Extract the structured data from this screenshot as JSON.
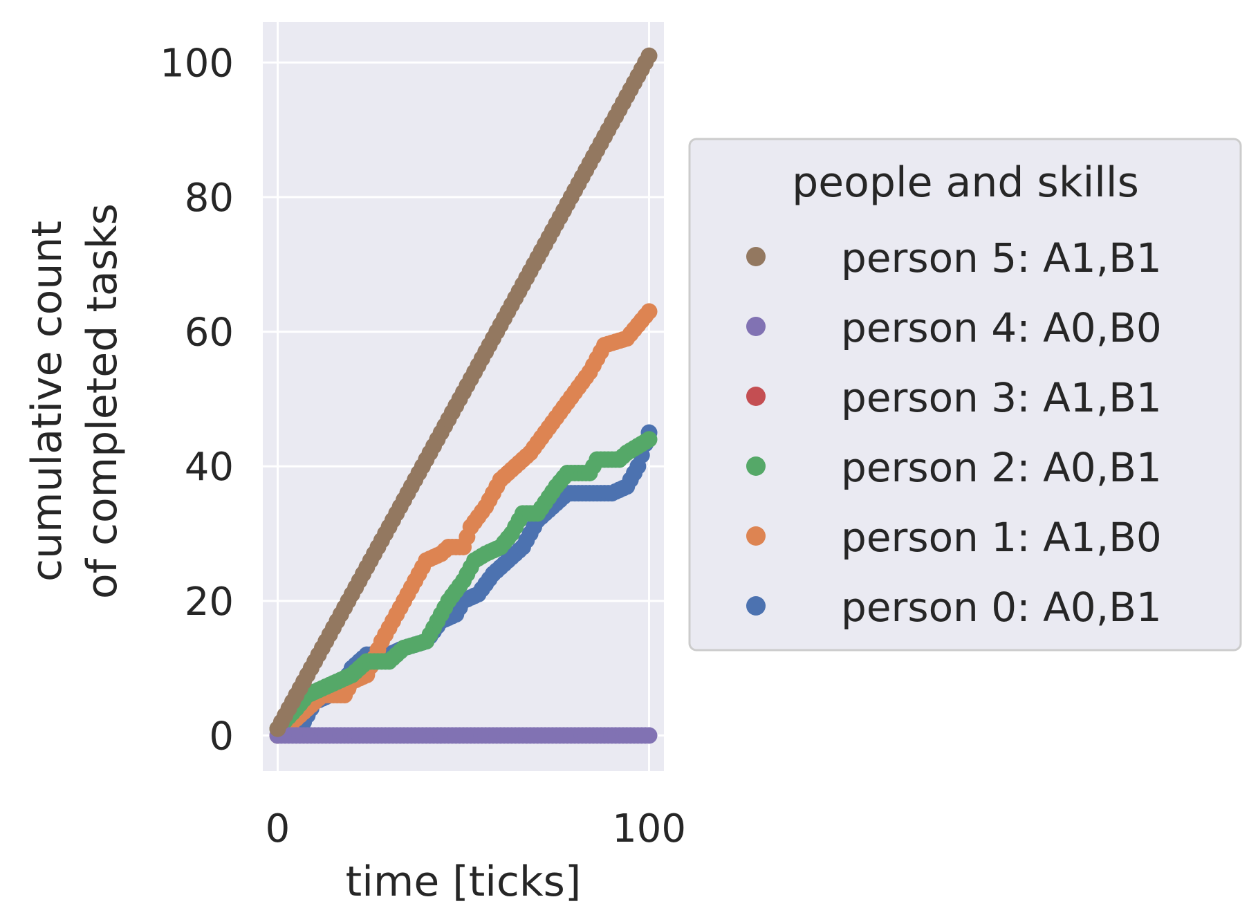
{
  "chart_data": {
    "type": "scatter",
    "xlabel": "time [ticks]",
    "ylabel_lines": [
      "cumulative count",
      "of completed tasks"
    ],
    "xlim": [
      -4,
      104
    ],
    "ylim": [
      -5.3,
      106
    ],
    "xticks": [
      0,
      100
    ],
    "yticks": [
      0,
      20,
      40,
      60,
      80,
      100
    ],
    "grid": true,
    "legend_title": "people and skills",
    "legend_position": "outside-right",
    "colors": {
      "background": "#eaeaf2",
      "grid": "#ffffff",
      "legend_face": "#eaeaf2",
      "legend_edge": "#cccccc"
    },
    "series": [
      {
        "name": "person 5: A1,B1",
        "color": "#937860",
        "points": [
          [
            0,
            1
          ],
          [
            100,
            101
          ]
        ]
      },
      {
        "name": "person 4: A0,B0",
        "color": "#8172b3",
        "points": [
          [
            0,
            0
          ],
          [
            100,
            0
          ]
        ]
      },
      {
        "name": "person 3: A1,B1",
        "color": "#c44e52",
        "points": []
      },
      {
        "name": "person 2: A0,B1",
        "color": "#55a868",
        "points": [
          [
            0,
            1
          ],
          [
            5,
            4
          ],
          [
            8,
            6
          ],
          [
            12,
            7
          ],
          [
            16,
            8
          ],
          [
            20,
            9
          ],
          [
            24,
            11
          ],
          [
            30,
            11
          ],
          [
            34,
            13
          ],
          [
            40,
            14
          ],
          [
            44,
            18
          ],
          [
            46,
            20
          ],
          [
            50,
            23
          ],
          [
            53,
            26
          ],
          [
            56,
            27
          ],
          [
            60,
            28
          ],
          [
            63,
            30
          ],
          [
            66,
            33
          ],
          [
            70,
            33
          ],
          [
            75,
            37
          ],
          [
            78,
            39
          ],
          [
            84,
            39
          ],
          [
            86,
            41
          ],
          [
            92,
            41
          ],
          [
            94,
            42
          ],
          [
            97,
            43
          ],
          [
            100,
            44
          ]
        ]
      },
      {
        "name": "person 1: A1,B0",
        "color": "#dd8452",
        "points": [
          [
            0,
            0
          ],
          [
            4,
            2
          ],
          [
            8,
            4
          ],
          [
            10,
            5
          ],
          [
            12,
            6
          ],
          [
            18,
            6
          ],
          [
            20,
            8
          ],
          [
            24,
            9
          ],
          [
            28,
            14
          ],
          [
            32,
            18
          ],
          [
            36,
            22
          ],
          [
            40,
            26
          ],
          [
            44,
            27
          ],
          [
            46,
            28
          ],
          [
            50,
            28
          ],
          [
            52,
            31
          ],
          [
            56,
            34
          ],
          [
            60,
            38
          ],
          [
            62,
            39
          ],
          [
            66,
            41
          ],
          [
            68,
            42
          ],
          [
            72,
            45
          ],
          [
            76,
            48
          ],
          [
            80,
            51
          ],
          [
            84,
            54
          ],
          [
            88,
            58
          ],
          [
            94,
            59
          ],
          [
            97,
            61
          ],
          [
            100,
            63
          ]
        ]
      },
      {
        "name": "person 0: A0,B1",
        "color": "#4c72b0",
        "points": [
          [
            0,
            0
          ],
          [
            6,
            1
          ],
          [
            8,
            3
          ],
          [
            10,
            5
          ],
          [
            14,
            6
          ],
          [
            18,
            8
          ],
          [
            20,
            10
          ],
          [
            24,
            12
          ],
          [
            30,
            12
          ],
          [
            34,
            13
          ],
          [
            40,
            14
          ],
          [
            44,
            17
          ],
          [
            48,
            18
          ],
          [
            50,
            20
          ],
          [
            54,
            21
          ],
          [
            58,
            24
          ],
          [
            62,
            26
          ],
          [
            66,
            28
          ],
          [
            70,
            32
          ],
          [
            74,
            34
          ],
          [
            78,
            36
          ],
          [
            90,
            36
          ],
          [
            94,
            37
          ],
          [
            97,
            40
          ],
          [
            100,
            45
          ]
        ]
      }
    ]
  }
}
